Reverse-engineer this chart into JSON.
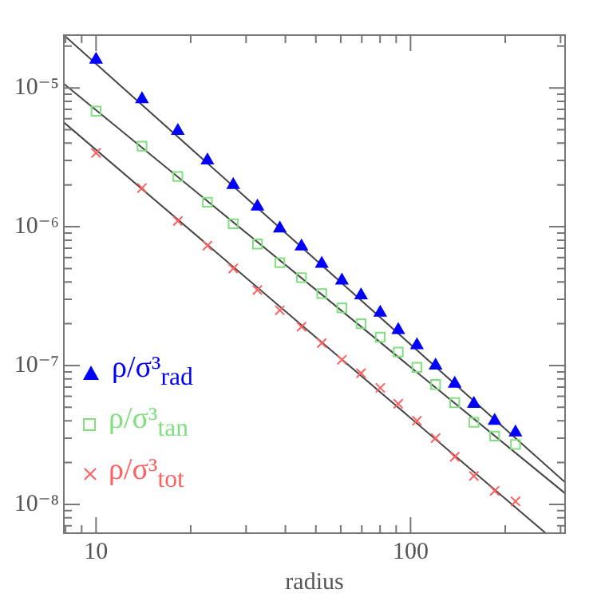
{
  "chart_data": {
    "type": "scatter",
    "xlabel": "radius",
    "log": "xy",
    "grid": false,
    "legend": "bottom left",
    "x": [
      10,
      14,
      18.2,
      22.6,
      27.3,
      32.6,
      38.4,
      45,
      52.2,
      60.5,
      69.6,
      80.1,
      91.4,
      104.8,
      120.1,
      138.2,
      159,
      185.1,
      215.6
    ],
    "xlim": [
      7.9,
      310
    ],
    "xticks": [
      {
        "value": 8,
        "label": null
      },
      {
        "value": 9,
        "label": null
      },
      10,
      {
        "value": 20,
        "label": null
      },
      {
        "value": 30,
        "label": null
      },
      {
        "value": 40,
        "label": null
      },
      {
        "value": 50,
        "label": null
      },
      {
        "value": 60,
        "label": null
      },
      {
        "value": 70,
        "label": null
      },
      {
        "value": 80,
        "label": null
      },
      {
        "value": 90,
        "label": null
      },
      100,
      {
        "value": 200,
        "label": null
      },
      {
        "value": 300,
        "label": null
      }
    ],
    "ylim": [
      6.2e-09,
      2.4e-05
    ],
    "yticks": [
      {
        "value": 7e-09,
        "label": null
      },
      {
        "value": 8e-09,
        "label": null
      },
      {
        "value": 9e-09,
        "label": null
      },
      {
        "value": 1e-08,
        "label": "10⁻⁸"
      },
      {
        "value": 2e-08,
        "label": null
      },
      {
        "value": 3e-08,
        "label": null
      },
      {
        "value": 4e-08,
        "label": null
      },
      {
        "value": 5e-08,
        "label": null
      },
      {
        "value": 6e-08,
        "label": null
      },
      {
        "value": 7e-08,
        "label": null
      },
      {
        "value": 8e-08,
        "label": null
      },
      {
        "value": 9e-08,
        "label": null
      },
      {
        "value": 1e-07,
        "label": "10⁻⁷"
      },
      {
        "value": 2e-07,
        "label": null
      },
      {
        "value": 3e-07,
        "label": null
      },
      {
        "value": 4e-07,
        "label": null
      },
      {
        "value": 5e-07,
        "label": null
      },
      {
        "value": 6e-07,
        "label": null
      },
      {
        "value": 7e-07,
        "label": null
      },
      {
        "value": 8e-07,
        "label": null
      },
      {
        "value": 9e-07,
        "label": null
      },
      {
        "value": 1e-06,
        "label": "10⁻⁶"
      },
      {
        "value": 2e-06,
        "label": null
      },
      {
        "value": 3e-06,
        "label": null
      },
      {
        "value": 4e-06,
        "label": null
      },
      {
        "value": 5e-06,
        "label": null
      },
      {
        "value": 6e-06,
        "label": null
      },
      {
        "value": 7e-06,
        "label": null
      },
      {
        "value": 8e-06,
        "label": null
      },
      {
        "value": 9e-06,
        "label": null
      },
      {
        "value": 1e-05,
        "label": "10⁻⁵"
      },
      {
        "value": 2e-05,
        "label": null
      }
    ],
    "series": [
      {
        "name": "ρ/σ³$_{rad}$",
        "color": "#0000ff",
        "marker": "triangle",
        "values": [
          1.6e-05,
          8.3e-06,
          4.9e-06,
          3e-06,
          2e-06,
          1.4e-06,
          9.7e-07,
          7.2e-07,
          5.4e-07,
          4.1e-07,
          3.2e-07,
          2.4e-07,
          1.8e-07,
          1.4e-07,
          1e-07,
          7.4e-08,
          5.3e-08,
          4e-08,
          3.3e-08
        ]
      },
      {
        "name": "ρ/σ³$_{tan}$",
        "color": "#80e080",
        "marker": "square",
        "values": [
          6.8e-06,
          3.8e-06,
          2.3e-06,
          1.5e-06,
          1.05e-06,
          7.5e-07,
          5.5e-07,
          4.3e-07,
          3.3e-07,
          2.6e-07,
          2e-07,
          1.6e-07,
          1.25e-07,
          9.7e-08,
          7.3e-08,
          5.4e-08,
          3.9e-08,
          3.1e-08,
          2.7e-08
        ]
      },
      {
        "name": "ρ/σ³$_{tot}$",
        "color": "#ff6060",
        "marker": "cross",
        "values": [
          3.4e-06,
          1.9e-06,
          1.1e-06,
          7.3e-07,
          5e-07,
          3.5e-07,
          2.5e-07,
          1.9e-07,
          1.45e-07,
          1.1e-07,
          8.8e-08,
          6.9e-08,
          5.3e-08,
          4e-08,
          3e-08,
          2.2e-08,
          1.6e-08,
          1.25e-08,
          1.05e-08
        ]
      },
      {
        "type": "line",
        "color": "#444444",
        "x": [
          7.9,
          310
        ],
        "values": [
          2.4e-05,
          1.44e-08
        ]
      },
      {
        "type": "line",
        "color": "#444444",
        "x": [
          7.9,
          310
        ],
        "values": [
          1.07e-05,
          1.2e-08
        ]
      },
      {
        "type": "line",
        "color": "#444444",
        "x": [
          7.9,
          269
        ],
        "values": [
          5.64e-06,
          6.2e-09
        ]
      }
    ]
  }
}
